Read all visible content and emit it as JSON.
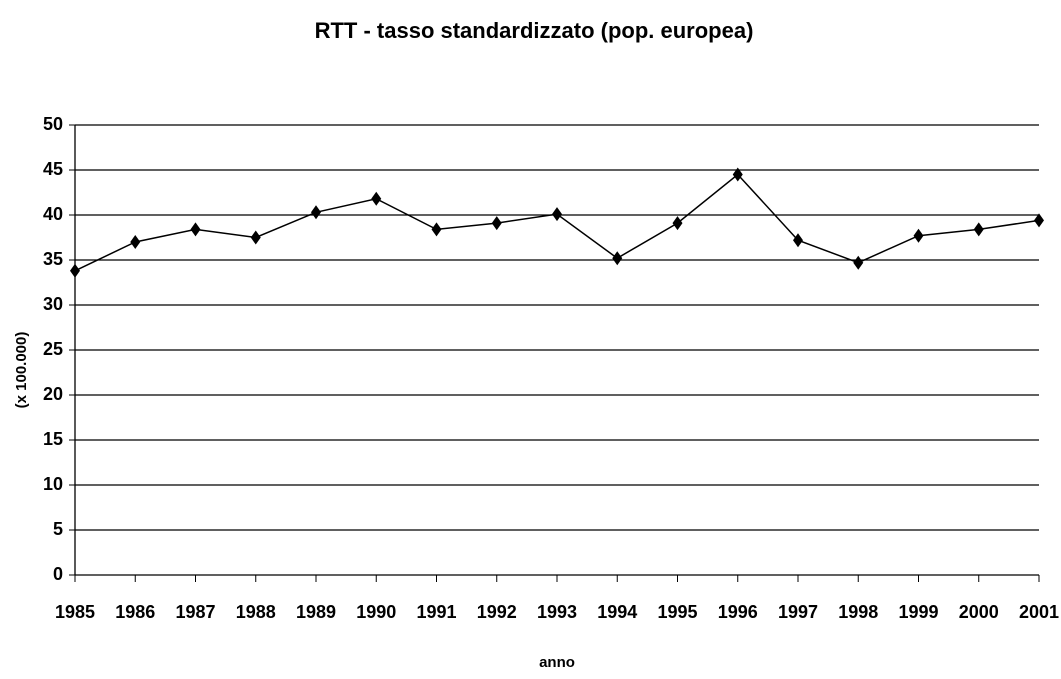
{
  "chart_data": {
    "type": "line",
    "title": "RTT - tasso standardizzato (pop. europea)",
    "x_label": "anno",
    "y_label": "(x 100.000)",
    "x": [
      1985,
      1986,
      1987,
      1988,
      1989,
      1990,
      1991,
      1992,
      1993,
      1994,
      1995,
      1996,
      1997,
      1998,
      1999,
      2000,
      2001
    ],
    "series": [
      {
        "name": "RTT",
        "color": "#000000",
        "values": [
          33.8,
          37.0,
          38.4,
          37.5,
          40.3,
          41.8,
          38.4,
          39.1,
          40.1,
          35.2,
          39.1,
          44.5,
          37.2,
          34.7,
          37.7,
          38.4,
          39.4
        ]
      }
    ],
    "xlim": [
      1985,
      2001
    ],
    "xticks": [
      1985,
      1986,
      1987,
      1988,
      1989,
      1990,
      1991,
      1992,
      1993,
      1994,
      1995,
      1996,
      1997,
      1998,
      1999,
      2000,
      2001
    ],
    "ylim": [
      0,
      50
    ],
    "yticks": [
      0,
      5,
      10,
      15,
      20,
      25,
      30,
      35,
      40,
      45,
      50
    ],
    "grid": true
  }
}
